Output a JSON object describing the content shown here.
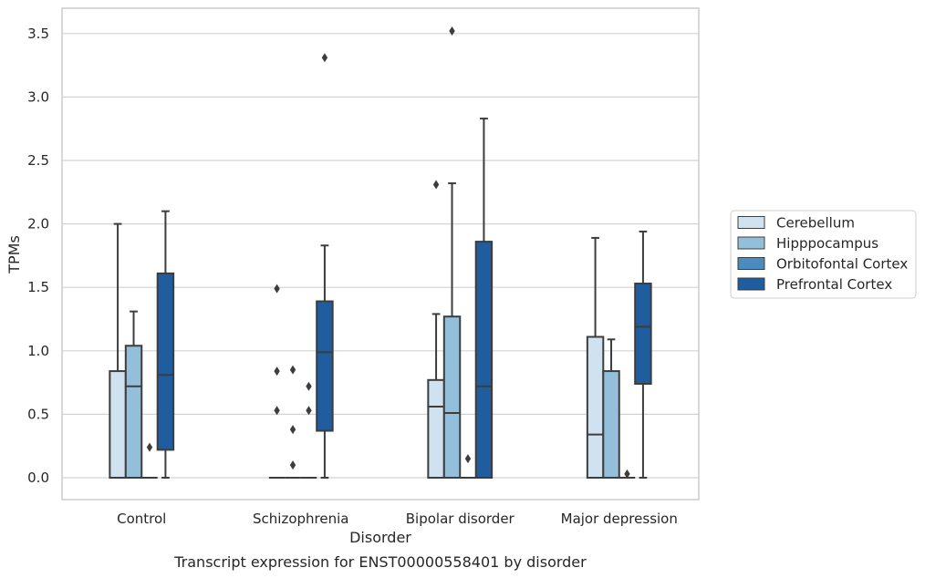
{
  "chart_data": {
    "type": "box",
    "xlabel": "Disorder",
    "ylabel": "TPMs",
    "ylim": [
      -0.17,
      3.7
    ],
    "yticks": [
      "0.0",
      "0.5",
      "1.0",
      "1.5",
      "2.0",
      "2.5",
      "3.0",
      "3.5"
    ],
    "grid": "horizontal",
    "legend_position": "right",
    "categories": [
      "Control",
      "Schizophrenia",
      "Bipolar disorder",
      "Major depression"
    ],
    "series": [
      {
        "name": "Cerebellum",
        "color": "#d0e1f0",
        "boxes": [
          {
            "whislo": 0,
            "q1": 0,
            "med": 0,
            "q3": 0.84,
            "whishi": 2.0,
            "fliers": []
          },
          {
            "whislo": 0,
            "q1": 0,
            "med": 0,
            "q3": 0,
            "whishi": 0,
            "fliers": [
              1.49,
              0.84,
              0.53
            ]
          },
          {
            "whislo": 0,
            "q1": 0,
            "med": 0.56,
            "q3": 0.77,
            "whishi": 1.29,
            "fliers": [
              2.31
            ]
          },
          {
            "whislo": 0,
            "q1": 0,
            "med": 0.34,
            "q3": 1.11,
            "whishi": 1.89,
            "fliers": []
          }
        ]
      },
      {
        "name": "Hipppocampus",
        "color": "#94bfdb",
        "boxes": [
          {
            "whislo": 0,
            "q1": 0,
            "med": 0.72,
            "q3": 1.04,
            "whishi": 1.31,
            "fliers": []
          },
          {
            "whislo": 0,
            "q1": 0,
            "med": 0,
            "q3": 0,
            "whishi": 0,
            "fliers": [
              0.85,
              0.38,
              0.1
            ]
          },
          {
            "whislo": 0,
            "q1": 0,
            "med": 0.51,
            "q3": 1.27,
            "whishi": 2.32,
            "fliers": [
              3.52
            ]
          },
          {
            "whislo": 0,
            "q1": 0,
            "med": 0,
            "q3": 0.84,
            "whishi": 1.09,
            "fliers": []
          }
        ]
      },
      {
        "name": "Orbitofontal Cortex",
        "color": "#4a8cbf",
        "boxes": [
          {
            "whislo": 0,
            "q1": 0,
            "med": 0,
            "q3": 0,
            "whishi": 0,
            "fliers": [
              0.24
            ]
          },
          {
            "whislo": 0,
            "q1": 0,
            "med": 0,
            "q3": 0,
            "whishi": 0,
            "fliers": [
              0.72,
              0.53
            ]
          },
          {
            "whislo": 0,
            "q1": 0,
            "med": 0,
            "q3": 0,
            "whishi": 0,
            "fliers": [
              0.15
            ]
          },
          {
            "whislo": 0,
            "q1": 0,
            "med": 0,
            "q3": 0,
            "whishi": 0,
            "fliers": [
              0.03
            ]
          }
        ]
      },
      {
        "name": "Prefrontal Cortex",
        "color": "#1f5d9e",
        "boxes": [
          {
            "whislo": 0,
            "q1": 0.22,
            "med": 0.81,
            "q3": 1.61,
            "whishi": 2.1,
            "fliers": []
          },
          {
            "whislo": 0,
            "q1": 0.37,
            "med": 0.99,
            "q3": 1.39,
            "whishi": 1.83,
            "fliers": [
              3.31
            ]
          },
          {
            "whislo": 0,
            "q1": 0,
            "med": 0.72,
            "q3": 1.86,
            "whishi": 2.83,
            "fliers": []
          },
          {
            "whislo": 0,
            "q1": 0.74,
            "med": 1.19,
            "q3": 1.53,
            "whishi": 1.94,
            "fliers": []
          }
        ]
      }
    ]
  },
  "caption": "Transcript expression for ENST00000558401 by disorder"
}
